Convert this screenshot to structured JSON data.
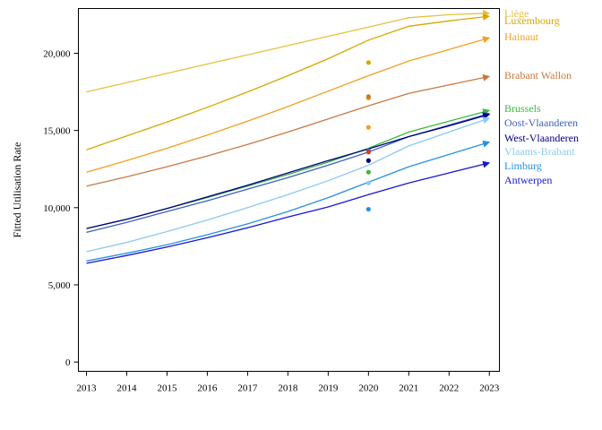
{
  "chart_data": {
    "type": "line",
    "title": "",
    "xlabel": "",
    "ylabel": "Fitted Utilisation Rate",
    "x": [
      2013,
      2014,
      2015,
      2016,
      2017,
      2018,
      2019,
      2020,
      2021,
      2022,
      2023
    ],
    "x_ticks": [
      "2013",
      "2014",
      "2015",
      "2016",
      "2017",
      "2018",
      "2019",
      "2020",
      "2021",
      "2022",
      "2023"
    ],
    "xlim": [
      2012.8,
      2023.25
    ],
    "y_ticks": [
      0,
      5000,
      10000,
      15000,
      20000
    ],
    "y_tick_labels": [
      "0",
      "5,000",
      "10,000",
      "15,000",
      "20,000"
    ],
    "ylim": [
      -600,
      22900
    ],
    "grid": false,
    "legend": "right, labels at line ends",
    "series": [
      {
        "name": "Liège",
        "color": "#e8c040",
        "values": [
          17500,
          18100,
          18700,
          19300,
          19900,
          20500,
          21100,
          21700,
          22300,
          22500,
          22600
        ],
        "observed": null
      },
      {
        "name": "Luxembourg",
        "color": "#d4a800",
        "values": [
          13750,
          14650,
          15550,
          16500,
          17500,
          18550,
          19650,
          20850,
          21750,
          22100,
          22400
        ],
        "observed": {
          "x": 2020,
          "y": 17100
        }
      },
      {
        "name": "Hainaut",
        "color": "#f0a020",
        "values": [
          12300,
          13050,
          13850,
          14700,
          15600,
          16550,
          17550,
          18550,
          19500,
          20250,
          21000
        ],
        "observed": {
          "x": 2020,
          "y": 15200
        }
      },
      {
        "name": "Brabant Wallon",
        "color": "#c87840",
        "values": [
          11400,
          12000,
          12650,
          13350,
          14100,
          14900,
          15750,
          16600,
          17400,
          17950,
          18500
        ],
        "observed": {
          "x": 2020,
          "y": 17200
        }
      },
      {
        "name": "Brussels",
        "color": "#3cb83c",
        "values": [
          8650,
          9250,
          9950,
          10650,
          11400,
          12150,
          12950,
          13850,
          14900,
          15600,
          16300
        ],
        "observed": {
          "x": 2020,
          "y": 12300
        }
      },
      {
        "name": "Oost-Vlaanderen",
        "color": "#4060c0",
        "values": [
          8400,
          9050,
          9750,
          10450,
          11200,
          11950,
          12750,
          13600,
          14600,
          15350,
          16100
        ],
        "observed": {
          "x": 2020,
          "y": 13700
        }
      },
      {
        "name": "West-Vlaanderen",
        "color": "#000080",
        "values": [
          8650,
          9250,
          9950,
          10700,
          11450,
          12250,
          13050,
          13800,
          14600,
          15300,
          16050
        ],
        "observed": {
          "x": 2020,
          "y": 13050
        }
      },
      {
        "name": "Vlaams-Brabant",
        "color": "#8cc8f0",
        "values": [
          7150,
          7750,
          8450,
          9200,
          10000,
          10850,
          11750,
          12750,
          14000,
          14900,
          15800
        ],
        "observed": {
          "x": 2020,
          "y": 11600
        }
      },
      {
        "name": "Limburg",
        "color": "#2890e0",
        "values": [
          6550,
          7050,
          7600,
          8250,
          8950,
          9750,
          10650,
          11650,
          12650,
          13450,
          14250
        ],
        "observed": {
          "x": 2020,
          "y": 9900
        }
      },
      {
        "name": "Antwerpen",
        "color": "#1818d0",
        "values": [
          6400,
          6900,
          7450,
          8050,
          8700,
          9400,
          10050,
          10850,
          11600,
          12250,
          12900
        ],
        "observed": null
      }
    ],
    "extra_points": [
      {
        "x": 2020,
        "y": 19400,
        "color": "#d4a800"
      },
      {
        "x": 2020,
        "y": 13600,
        "color": "#d04020"
      }
    ]
  }
}
